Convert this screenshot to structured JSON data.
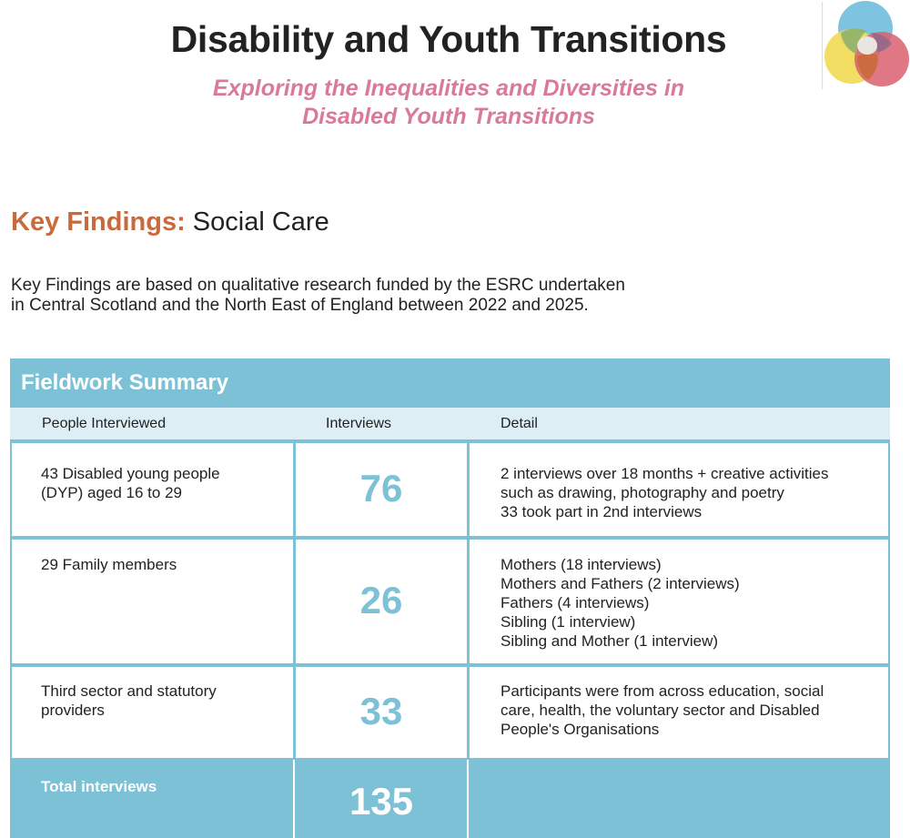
{
  "header": {
    "title": "Disability and Youth Transitions",
    "subtitle_line1": "Exploring the Inequalities and Diversities in",
    "subtitle_line2": "Disabled Youth Transitions"
  },
  "logo": {
    "icon": "venn-circles-logo",
    "colors": [
      "#7ec3df",
      "#f1dc5a",
      "#d9606e"
    ]
  },
  "section": {
    "heading_accent": "Key Findings:",
    "heading_rest": " Social Care",
    "intro_line1": "Key Findings are based on qualitative research funded by the ESRC undertaken",
    "intro_line2": "in Central Scotland and the North East of England between 2022 and 2025."
  },
  "table": {
    "title": "Fieldwork Summary",
    "columns": [
      "People Interviewed",
      "Interviews",
      "Detail"
    ],
    "rows": [
      {
        "people": "43 Disabled young people\n(DYP) aged 16 to 29",
        "interviews": "76",
        "detail": "2 interviews over 18 months + creative activities\nsuch as drawing, photography and poetry\n33 took part in 2nd interviews"
      },
      {
        "people": "29 Family members",
        "interviews": "26",
        "detail": "Mothers (18 interviews)\nMothers and Fathers (2 interviews)\nFathers (4 interviews)\nSibling (1 interview)\nSibling and Mother (1 interview)"
      },
      {
        "people": "Third sector and statutory\nproviders",
        "interviews": "33",
        "detail": "Participants were from across education, social\ncare, health, the voluntary sector and Disabled\nPeople's Organisations"
      }
    ],
    "total_label": "Total interviews",
    "total_value": "135"
  },
  "colors": {
    "accent_blue": "#7cc1d6",
    "light_blue": "#ddeef5",
    "pink": "#d97a99",
    "orange": "#c96a3c"
  }
}
